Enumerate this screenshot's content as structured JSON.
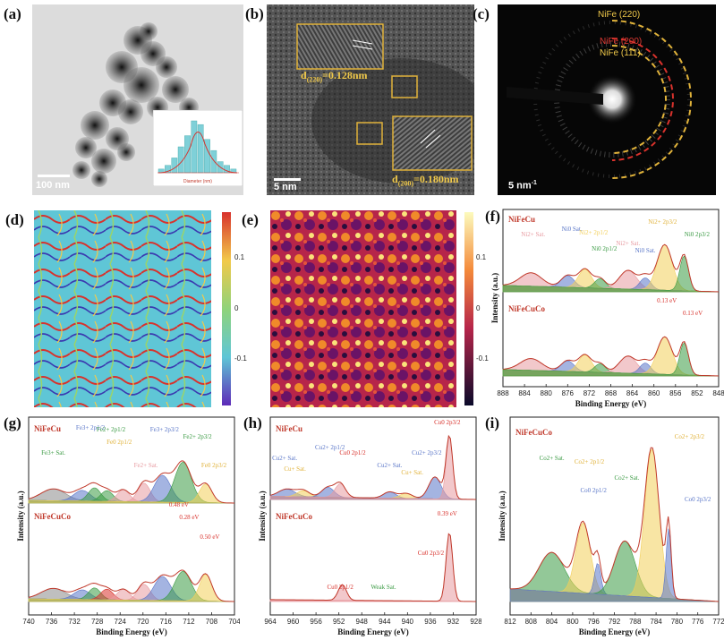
{
  "labels": {
    "a": "(a)",
    "b": "(b)",
    "c": "(c)",
    "d": "(d)",
    "e": "(e)",
    "f": "(f)",
    "g": "(g)",
    "h": "(h)",
    "i": "(i)"
  },
  "panel_a": {
    "scale_bar": "100 nm",
    "inset_xlabel": "Diameter (nm)",
    "histogram": [
      1,
      2,
      4,
      7,
      10,
      14,
      13,
      9,
      6,
      3,
      2,
      1
    ]
  },
  "panel_b": {
    "scale_bar": "5 nm",
    "d220_pre": "d",
    "d220_sub": "(220)",
    "d220_val": "=0.128nm",
    "d200_pre": "d",
    "d200_sub": "(200)",
    "d200_val": "=0.180nm"
  },
  "panel_c": {
    "scale_bar": "5 nm",
    "scale_sup": "-1",
    "ring1": "NiFe (220)",
    "ring2": "NiFe (200)",
    "ring3": "NiFe (111)"
  },
  "panel_d": {
    "ticks": [
      "0.1",
      "0",
      "-0.1"
    ]
  },
  "panel_e": {
    "ticks": [
      "0.1",
      "0",
      "-0.1"
    ]
  },
  "spectra": {
    "ylabel": "Intensity (a.u.)",
    "xlabel": "Binding Energy (eV)",
    "f": {
      "samples": [
        "NiFeCu",
        "NiFeCuCo"
      ],
      "xticks": [
        "888",
        "884",
        "880",
        "876",
        "872",
        "868",
        "864",
        "860",
        "856",
        "852",
        "848"
      ],
      "annotations": [
        "Ni2+ Sat.",
        "Ni0 Sat.",
        "Ni2+ 2p1/2",
        "Ni0 2p1/2",
        "Ni2+ Sat.",
        "Ni0 Sat.",
        "Ni2+ 2p3/2",
        "Ni0 2p3/2",
        "0.13 eV",
        "0.13 eV"
      ]
    },
    "g": {
      "samples": [
        "NiFeCu",
        "NiFeCuCo"
      ],
      "xticks": [
        "740",
        "736",
        "732",
        "728",
        "724",
        "720",
        "716",
        "712",
        "708",
        "704"
      ],
      "annotations": [
        "Fe3+ Sat.",
        "Fe3+ 2p1/2",
        "Fe2+ 2p1/2",
        "Fe0 2p1/2",
        "Fe2+ Sat.",
        "Fe3+ 2p3/2",
        "Fe2+ 2p3/2",
        "Fe0 2p3/2",
        "0.48 eV",
        "0.28 eV",
        "0.50 eV"
      ]
    },
    "h": {
      "samples": [
        "NiFeCu",
        "NiFeCuCo"
      ],
      "xticks": [
        "964",
        "960",
        "956",
        "952",
        "948",
        "944",
        "940",
        "936",
        "932",
        "928"
      ],
      "annotations": [
        "Cu2+ Sat.",
        "Cu+ Sat.",
        "Cu2+ 2p1/2",
        "Cu0 2p1/2",
        "Cu2+ Sat.",
        "Cu+ Sat.",
        "Cu2+ 2p3/2",
        "Cu0 2p3/2",
        "0.39 eV",
        "Cu0 2p3/2",
        "Cu0 2p1/2",
        "Weak Sat."
      ]
    },
    "i": {
      "samples": [
        "NiFeCuCo"
      ],
      "xticks": [
        "812",
        "808",
        "804",
        "800",
        "796",
        "792",
        "788",
        "784",
        "780",
        "776",
        "772"
      ],
      "annotations": [
        "Co2+ Sat.",
        "Co2+ 2p1/2",
        "Co0 2p1/2",
        "Co2+ Sat.",
        "Co2+ 2p3/2",
        "Co0 2p3/2"
      ]
    }
  },
  "colors": {
    "gold": "#e0b23a",
    "red": "#d8322c",
    "green": "#3a9a43",
    "blue": "#5a76c8",
    "pink": "#e79aa0",
    "yellow": "#f2cf5a",
    "grey": "#8b8b8b"
  }
}
